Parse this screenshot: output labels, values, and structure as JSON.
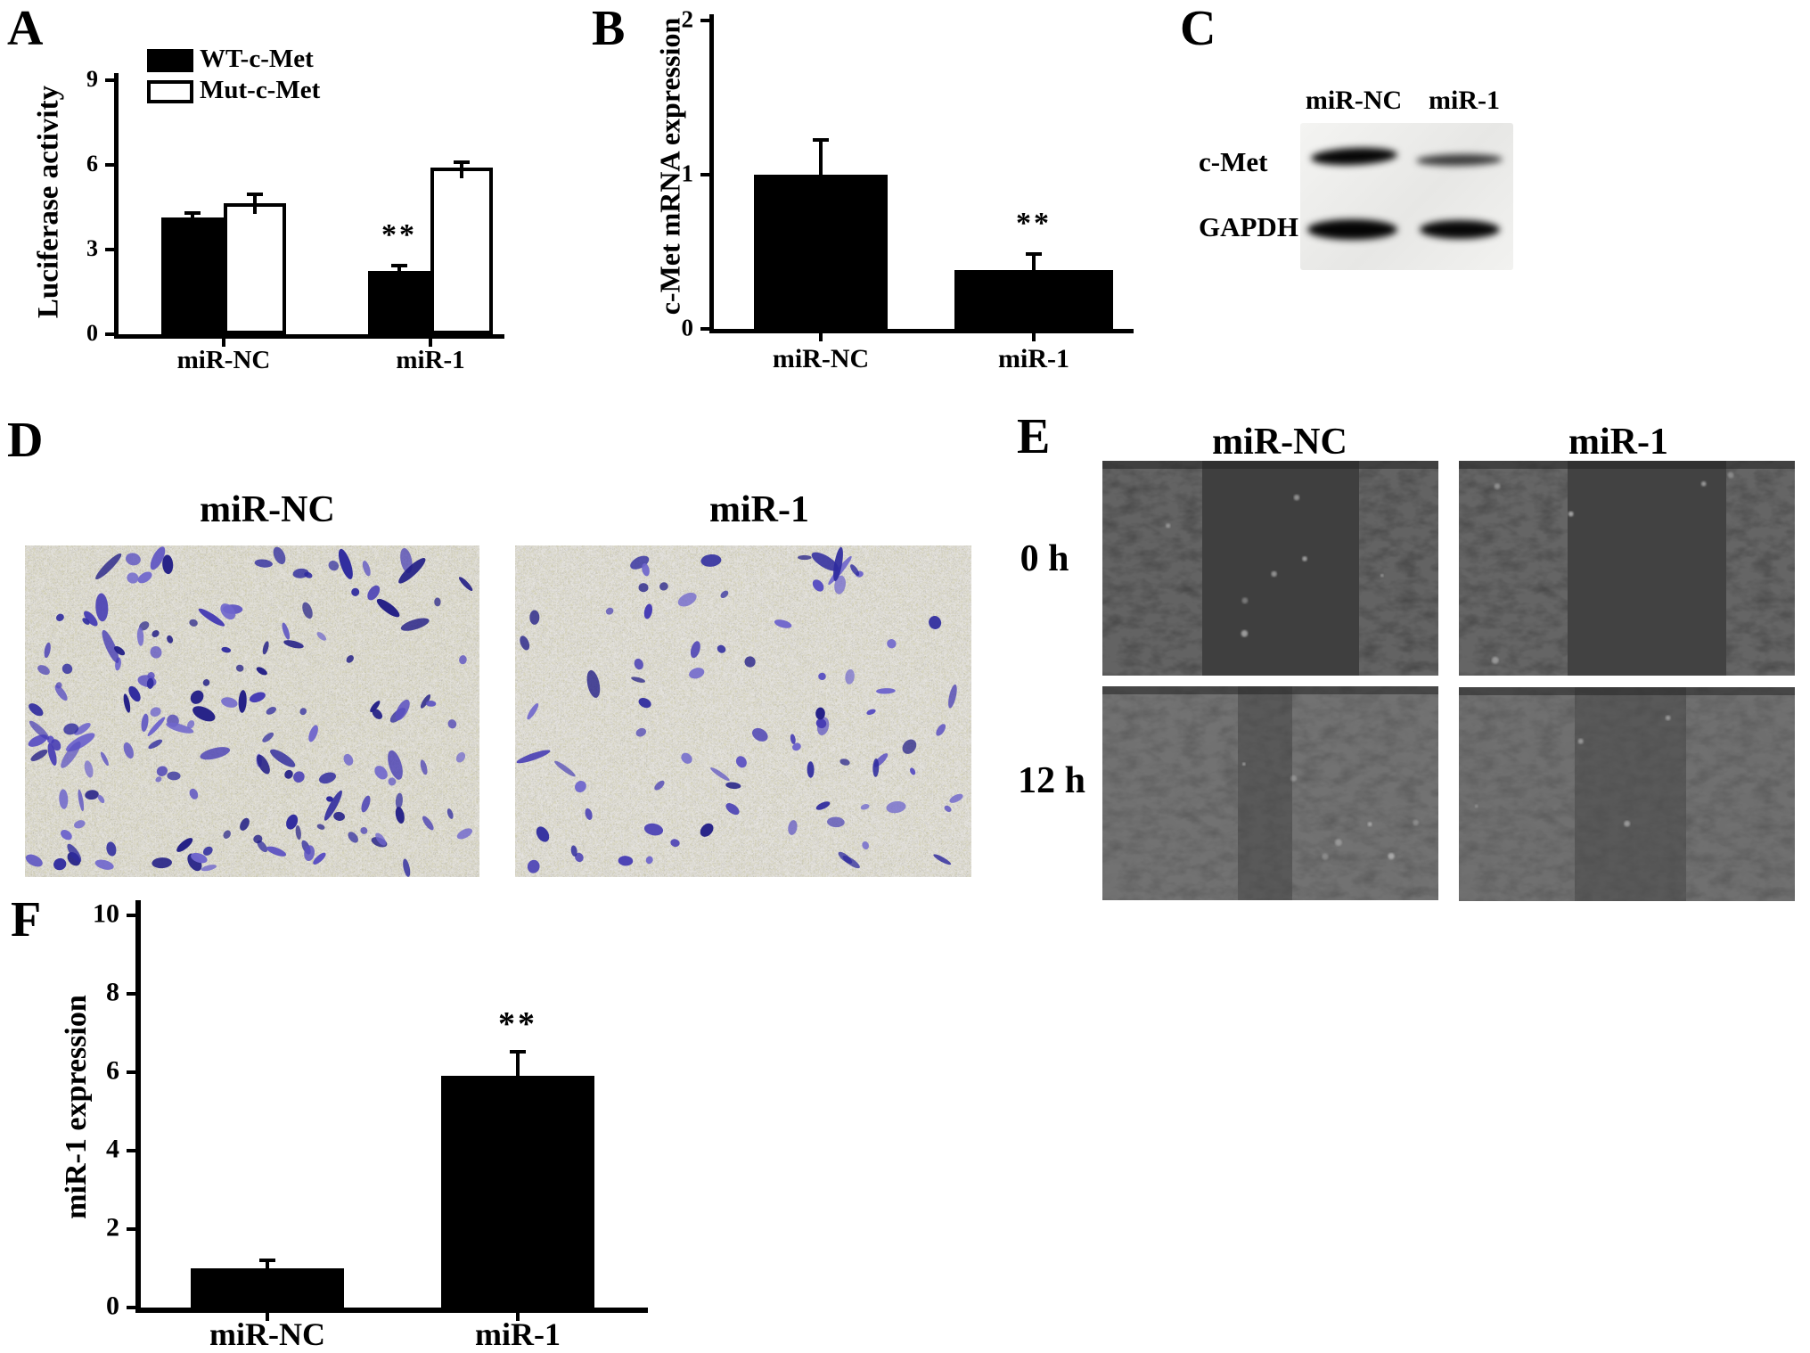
{
  "panels": {
    "A": {
      "letter": "A"
    },
    "B": {
      "letter": "B"
    },
    "C": {
      "letter": "C",
      "columns": [
        "miR-NC",
        "miR-1"
      ],
      "rows": [
        "c-Met",
        "GAPDH"
      ],
      "description": "western blot, c-Met reduced in miR-1 lane"
    },
    "D": {
      "letter": "D",
      "columns": [
        "miR-NC",
        "miR-1"
      ],
      "description": "transwell migration, crystal-violet stained cells",
      "cell_counts": [
        155,
        80
      ]
    },
    "E": {
      "letter": "E",
      "columns": [
        "miR-NC",
        "miR-1"
      ],
      "rows": [
        "0 h",
        "12 h"
      ],
      "description": "wound healing assay, phase contrast"
    },
    "F": {
      "letter": "F"
    }
  },
  "chart_data": [
    {
      "type": "bar",
      "panel": "A",
      "title": "",
      "xlabel": "",
      "ylabel": "Luciferase activity",
      "categories": [
        "miR-NC",
        "miR-1"
      ],
      "series": [
        {
          "name": "WT-c-Met",
          "fill": "#000000",
          "values": [
            4.15,
            2.25
          ],
          "errors": [
            0.12,
            0.15
          ]
        },
        {
          "name": "Mut-c-Met",
          "fill": "#ffffff",
          "values": [
            4.65,
            5.9
          ],
          "errors": [
            0.28,
            0.15
          ]
        }
      ],
      "yticks": [
        0,
        3,
        6,
        9
      ],
      "ylim": [
        0,
        10.5
      ],
      "grid": false,
      "legend": true,
      "legend_position": "top-left-inside",
      "significance": [
        {
          "series": 0,
          "category": 1,
          "marker": "**"
        }
      ]
    },
    {
      "type": "bar",
      "panel": "B",
      "title": "",
      "xlabel": "",
      "ylabel": "c-Met mRNA expression",
      "categories": [
        "miR-NC",
        "miR-1"
      ],
      "series": [
        {
          "name": "c-Met mRNA",
          "fill": "#000000",
          "values": [
            1.0,
            0.38
          ],
          "errors": [
            0.22,
            0.1
          ]
        }
      ],
      "yticks": [
        0,
        1,
        2
      ],
      "ylim": [
        0,
        2
      ],
      "grid": false,
      "legend": false,
      "significance": [
        {
          "series": 0,
          "category": 1,
          "marker": "**"
        }
      ]
    },
    {
      "type": "bar",
      "panel": "F",
      "title": "",
      "xlabel": "",
      "ylabel": "miR-1 expression",
      "categories": [
        "miR-NC",
        "miR-1"
      ],
      "series": [
        {
          "name": "miR-1",
          "fill": "#000000",
          "values": [
            1.0,
            5.9
          ],
          "errors": [
            0.18,
            0.6
          ]
        }
      ],
      "yticks": [
        0,
        2,
        4,
        6,
        8,
        10
      ],
      "ylim": [
        0,
        10
      ],
      "grid": false,
      "legend": false,
      "significance": [
        {
          "series": 0,
          "category": 1,
          "marker": "**"
        }
      ]
    }
  ]
}
